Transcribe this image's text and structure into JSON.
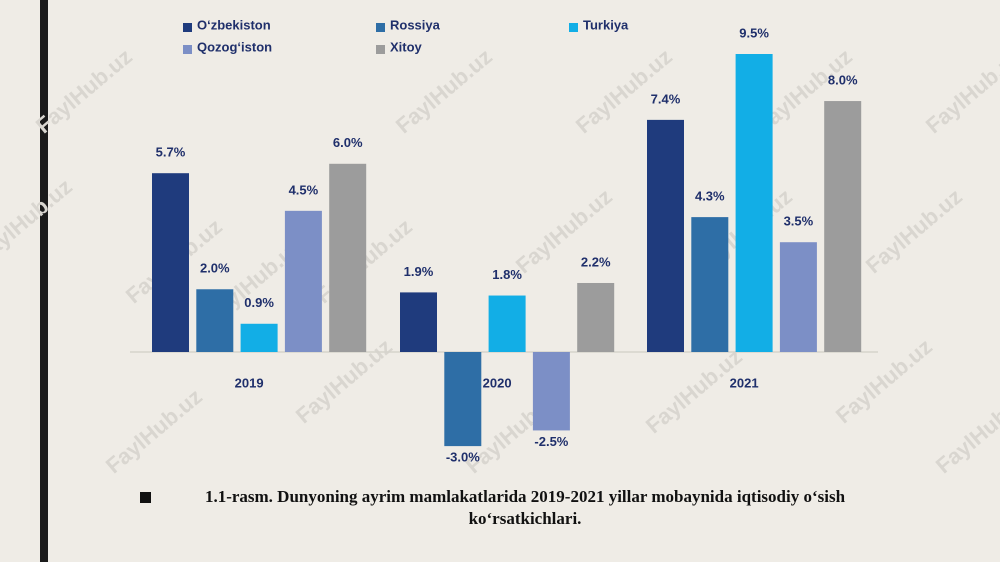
{
  "chart_data": {
    "type": "bar",
    "categories": [
      "2019",
      "2020",
      "2021"
    ],
    "series": [
      {
        "name": "O‘zbekiston",
        "color": "#1f3b7d",
        "values": [
          5.7,
          1.9,
          7.4
        ],
        "value_labels": [
          "5.7%",
          "1.9%",
          "7.4%"
        ]
      },
      {
        "name": "Rossiya",
        "color": "#2e6ea6",
        "values": [
          2.0,
          -3.0,
          4.3
        ],
        "value_labels": [
          "2.0%",
          "-3.0%",
          "4.3%"
        ]
      },
      {
        "name": "Turkiya",
        "color": "#12aee6",
        "values": [
          0.9,
          1.8,
          9.5
        ],
        "value_labels": [
          "0.9%",
          "1.8%",
          "9.5%"
        ]
      },
      {
        "name": "Qozog‘iston",
        "color": "#7c8fc6",
        "values": [
          4.5,
          -2.5,
          3.5
        ],
        "value_labels": [
          "4.5%",
          "-2.5%",
          "3.5%"
        ]
      },
      {
        "name": "Xitoy",
        "color": "#9c9c9c",
        "values": [
          6.0,
          2.2,
          8.0
        ],
        "value_labels": [
          "6.0%",
          "2.2%",
          "8.0%"
        ]
      }
    ]
  },
  "caption": "1.1-rasm. Dunyoning ayrim mamlakatlarida 2019-2021 yillar mobaynida iqtisodiy o‘sish ko‘rsatkichlari.",
  "watermark": "FaylHub.uz"
}
